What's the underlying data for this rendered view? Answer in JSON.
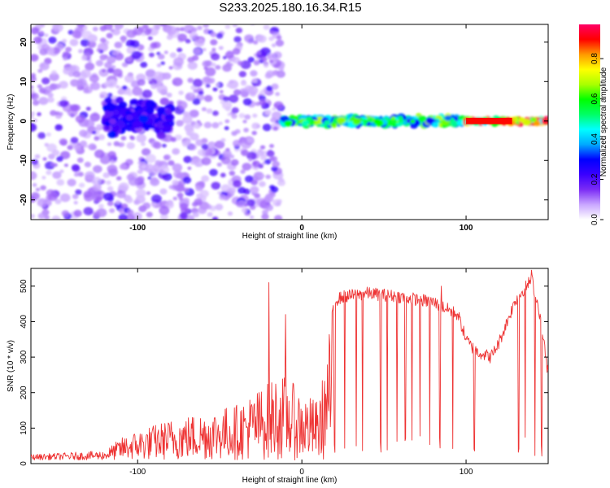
{
  "title": "S233.2025.180.16.34.R15",
  "chart_data": [
    {
      "type": "heatmap",
      "xlabel": "Height of straight line (km)",
      "ylabel": "Frequency (Hz)",
      "xlim": [
        -165,
        150
      ],
      "ylim": [
        -25,
        24.5
      ],
      "xticks": [
        -100,
        0,
        100
      ],
      "yticks": [
        -20,
        -10,
        0,
        10,
        20
      ],
      "colorbar": {
        "label": "Normalized spectral amplitude",
        "range": [
          0,
          0.97
        ],
        "ticks": [
          0.0,
          0.2,
          0.4,
          0.6,
          0.8
        ],
        "palette": [
          "#ffffff",
          "#c9a6ff",
          "#7b2cf5",
          "#3a00ff",
          "#0000ff",
          "#00aaff",
          "#00ffff",
          "#00ff66",
          "#00ff00",
          "#aaff00",
          "#ffff00",
          "#ff9900",
          "#ff0000",
          "#ff0066"
        ]
      },
      "regions": [
        {
          "x": [
            -165,
            -12
          ],
          "freq_center": 0,
          "freq_spread": 25,
          "amplitude": 0.1,
          "description": "broadband noise"
        },
        {
          "x": [
            -120,
            -80
          ],
          "freq_center": 1,
          "freq_spread": 4,
          "amplitude": 0.25
        },
        {
          "x": [
            -12,
            100
          ],
          "freq_center": 0,
          "freq_spread": 1,
          "amplitude": 0.55
        },
        {
          "x": [
            100,
            150
          ],
          "freq_center": 0,
          "freq_spread": 0.5,
          "amplitude": 0.9
        }
      ]
    },
    {
      "type": "line",
      "xlabel": "Height of straight line (km)",
      "ylabel": "SNR (10 * v/v)",
      "xlim": [
        -165,
        150
      ],
      "ylim": [
        0,
        550
      ],
      "xticks": [
        -100,
        0,
        100
      ],
      "yticks": [
        0,
        100,
        200,
        300,
        400,
        500
      ],
      "color": "#ee3333",
      "profile": {
        "x": [
          -165,
          -120,
          -110,
          -100,
          -80,
          -60,
          -40,
          -30,
          -20,
          -15,
          -10,
          -5,
          0,
          5,
          10,
          15,
          18,
          20,
          25,
          40,
          60,
          80,
          95,
          100,
          105,
          115,
          120,
          125,
          130,
          140,
          145,
          150
        ],
        "y": [
          15,
          25,
          60,
          80,
          110,
          130,
          150,
          180,
          210,
          230,
          225,
          205,
          180,
          170,
          160,
          280,
          400,
          460,
          470,
          480,
          470,
          455,
          420,
          350,
          320,
          300,
          340,
          400,
          460,
          520,
          420,
          250
        ]
      },
      "spikes": [
        {
          "x": -20,
          "y": 510
        },
        {
          "x": -10,
          "y": 420
        },
        {
          "x": 85,
          "y": 500
        },
        {
          "x": 140,
          "y": 545
        }
      ],
      "dropouts_x": [
        20,
        26,
        33,
        37,
        48,
        52,
        58,
        63,
        67,
        72,
        78,
        84,
        92,
        105,
        132,
        136,
        142,
        146
      ]
    }
  ]
}
